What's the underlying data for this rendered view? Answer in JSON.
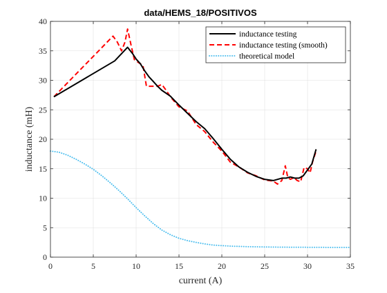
{
  "chart_data": {
    "type": "line",
    "title": "data/HEMS_18/POSITIVOS",
    "xlabel": "current (A)",
    "ylabel": "inductance (mH)",
    "xlim": [
      0,
      35
    ],
    "ylim": [
      0,
      40
    ],
    "xticks": [
      0,
      5,
      10,
      15,
      20,
      25,
      30,
      35
    ],
    "yticks": [
      0,
      5,
      10,
      15,
      20,
      25,
      30,
      35,
      40
    ],
    "grid": true,
    "legend_position": "top-right",
    "series": [
      {
        "name": "inductance testing",
        "color": "#000000",
        "style": "solid",
        "x": [
          0.4,
          7.5,
          9.0,
          9.6,
          10.0,
          10.5,
          11.0,
          11.5,
          12.0,
          12.5,
          13.0,
          14.0,
          15.0,
          16.0,
          17.0,
          18.0,
          19.0,
          20.0,
          21.0,
          22.0,
          23.0,
          24.0,
          25.0,
          26.0,
          27.0,
          27.5,
          28.0,
          28.5,
          29.0,
          29.5,
          30.0,
          30.5,
          31.0
        ],
        "y": [
          27.2,
          33.3,
          35.6,
          34.5,
          33.6,
          32.8,
          31.6,
          30.6,
          29.8,
          29.0,
          28.3,
          27.3,
          25.8,
          24.4,
          23.0,
          21.8,
          20.1,
          18.3,
          16.6,
          15.3,
          14.4,
          13.7,
          13.2,
          13.0,
          13.4,
          13.4,
          13.6,
          13.4,
          13.4,
          13.8,
          14.8,
          15.8,
          18.3
        ]
      },
      {
        "name": "inductance testing (smooth)",
        "color": "#ff0000",
        "style": "dashed",
        "x": [
          0.4,
          7.3,
          7.8,
          8.3,
          8.7,
          9.0,
          9.4,
          9.8,
          10.3,
          10.8,
          11.2,
          11.5,
          12.0,
          12.5,
          13.0,
          13.5,
          14.0,
          15.0,
          16.0,
          17.0,
          18.0,
          19.0,
          20.0,
          21.0,
          22.0,
          23.0,
          24.0,
          25.0,
          26.0,
          26.5,
          27.0,
          27.4,
          27.7,
          28.0,
          28.4,
          28.8,
          29.2,
          29.6,
          30.0,
          30.3,
          30.6,
          31.0
        ],
        "y": [
          27.2,
          37.5,
          36.5,
          35.0,
          36.5,
          38.7,
          36.0,
          33.5,
          33.0,
          32.5,
          29.0,
          29.0,
          29.0,
          29.0,
          29.3,
          28.3,
          27.2,
          25.5,
          24.8,
          22.5,
          21.3,
          19.5,
          18.0,
          16.1,
          15.3,
          14.3,
          13.8,
          13.1,
          12.9,
          12.4,
          13.0,
          15.5,
          13.5,
          13.2,
          13.5,
          13.0,
          12.8,
          15.2,
          15.0,
          14.3,
          16.2,
          18.0
        ]
      },
      {
        "name": "theoretical model",
        "color": "#4dbeee",
        "style": "dotted",
        "x": [
          0,
          1,
          2,
          3,
          4,
          5,
          6,
          7,
          8,
          9,
          10,
          11,
          12,
          13,
          14,
          15,
          16,
          17,
          18,
          19,
          20,
          21,
          22,
          23,
          24,
          25,
          26,
          27,
          28,
          29,
          30,
          31,
          32,
          33,
          34,
          35
        ],
        "y": [
          18.0,
          17.8,
          17.3,
          16.6,
          15.8,
          14.9,
          13.8,
          12.6,
          11.3,
          9.9,
          8.4,
          7.0,
          5.7,
          4.6,
          3.8,
          3.2,
          2.8,
          2.5,
          2.25,
          2.05,
          1.95,
          1.87,
          1.82,
          1.78,
          1.75,
          1.73,
          1.71,
          1.7,
          1.69,
          1.68,
          1.67,
          1.66,
          1.66,
          1.65,
          1.65,
          1.65
        ]
      }
    ]
  }
}
